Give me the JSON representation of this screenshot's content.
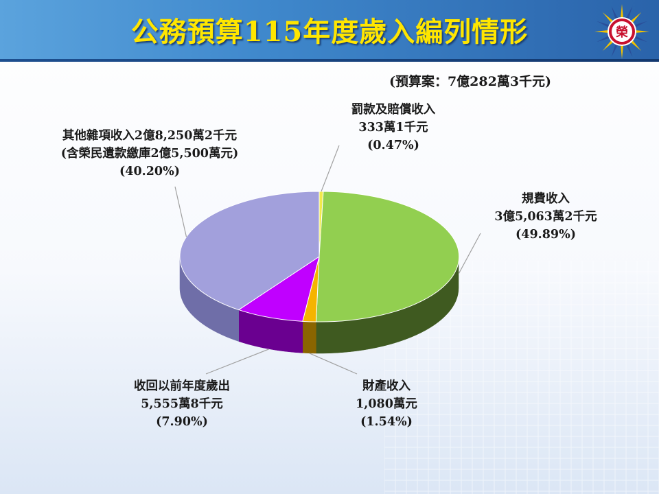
{
  "slide": {
    "title": "公務預算115年度歲入編列情形",
    "emblem_icon": "emblem-icon",
    "emblem_char": "榮",
    "colors": {
      "header": "#3f88cc",
      "title": "#ffe600"
    }
  },
  "chart_data": {
    "type": "pie",
    "subtitle": "(預算案：7億282萬3千元)",
    "slices": [
      {
        "name": "罰款及賠償收入",
        "amount": "333萬1千元",
        "percent": 0.47,
        "percent_label": "(0.47%)",
        "color": "#f2ea4a",
        "side": "#8f8a20"
      },
      {
        "name": "規費收入",
        "amount": "3億5,063萬2千元",
        "percent": 49.89,
        "percent_label": "(49.89%)",
        "color": "#92cf50",
        "side": "#3f5a20"
      },
      {
        "name": "財產收入",
        "amount": "1,080萬元",
        "percent": 1.54,
        "percent_label": "(1.54%)",
        "color": "#f5b400",
        "side": "#8a6500"
      },
      {
        "name": "收回以前年度歲出",
        "amount": "5,555萬8千元",
        "percent": 7.9,
        "percent_label": "(7.90%)",
        "color": "#c000ff",
        "side": "#6a0090"
      },
      {
        "name": "其他雜項收入2億8,250萬2千元",
        "amount": "(含榮民遺款繳庫2億5,500萬元)",
        "percent": 40.2,
        "percent_label": "(40.20%)",
        "color": "#a2a0dc",
        "side": "#6f6ea8"
      }
    ]
  }
}
